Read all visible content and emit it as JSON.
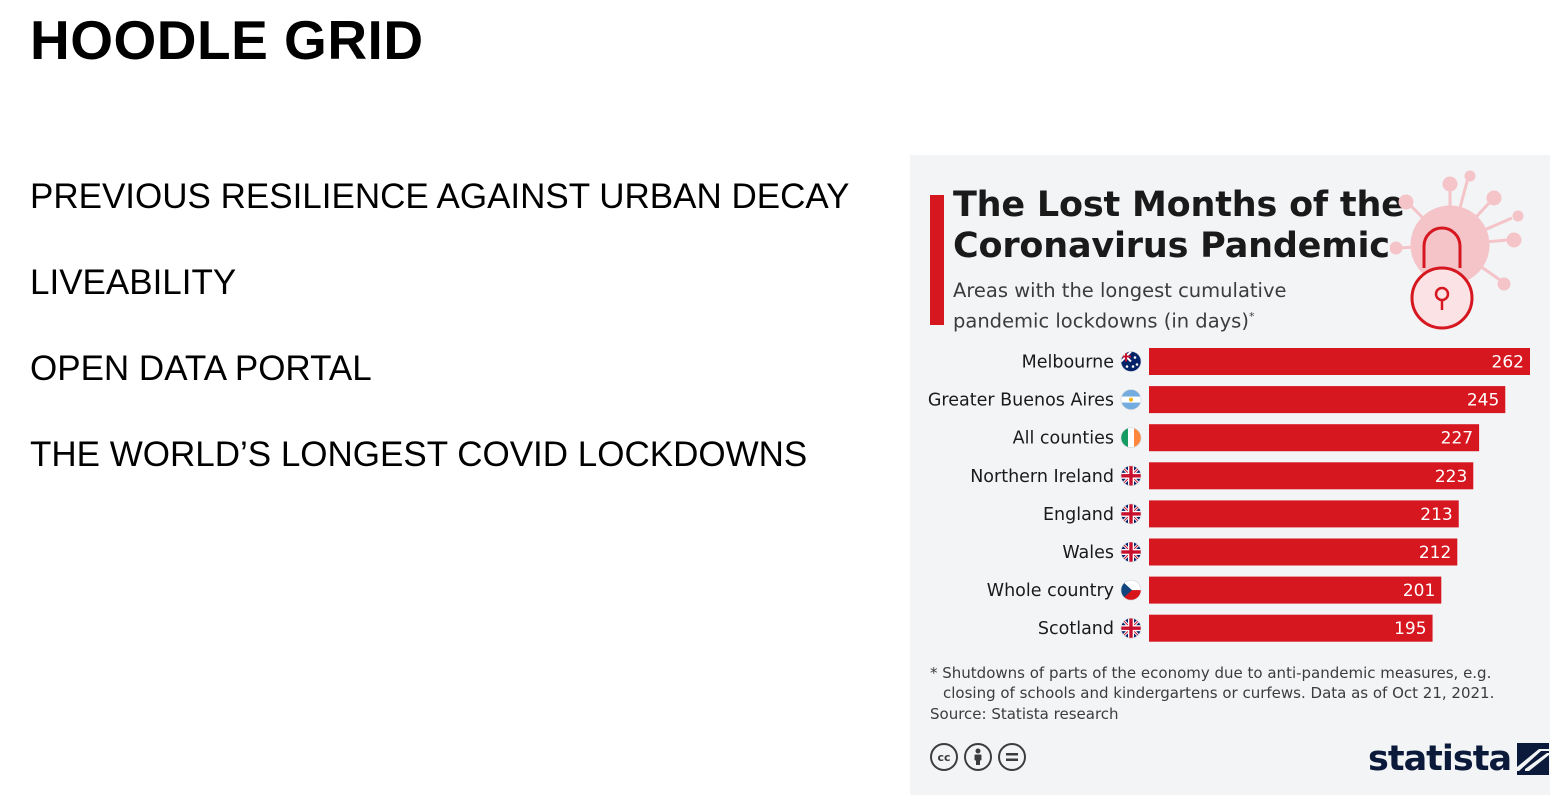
{
  "slide": {
    "title": "HOODLE GRID",
    "bullets": [
      "PREVIOUS RESILIENCE AGAINST URBAN DECAY",
      "LIVEABILITY",
      "OPEN DATA PORTAL",
      "THE WORLD’S LONGEST COVID LOCKDOWNS"
    ]
  },
  "infographic": {
    "title_line1": "The Lost Months of the",
    "title_line2": "Coronavirus Pandemic",
    "subtitle_line1": "Areas with the longest cumulative",
    "subtitle_line2": "pandemic lockdowns (in days)",
    "subtitle_mark": "*",
    "footnote_line1": "* Shutdowns of parts of the economy due to anti-pandemic measures, e.g.",
    "footnote_line2": "closing of schools and kindergartens or curfews. Data as of Oct 21, 2021.",
    "source": "Source: Statista research",
    "brand": "statista",
    "cc_icons": [
      "cc-icon",
      "by-icon",
      "nd-icon"
    ],
    "colors": {
      "bar": "#d6171f",
      "accent": "#d6171f",
      "background": "#f2f4f6",
      "brand": "#0b1a3a"
    }
  },
  "chart_data": {
    "type": "bar",
    "orientation": "horizontal",
    "categories": [
      "Melbourne",
      "Greater Buenos Aires",
      "All counties",
      "Northern Ireland",
      "England",
      "Wales",
      "Whole country",
      "Scotland"
    ],
    "flags": [
      "australia",
      "argentina",
      "ireland",
      "united-kingdom",
      "united-kingdom",
      "united-kingdom",
      "czech-republic",
      "united-kingdom"
    ],
    "values": [
      262,
      245,
      227,
      223,
      213,
      212,
      201,
      195
    ],
    "xlim": [
      0,
      262
    ],
    "grid": false,
    "data_labels": true
  }
}
